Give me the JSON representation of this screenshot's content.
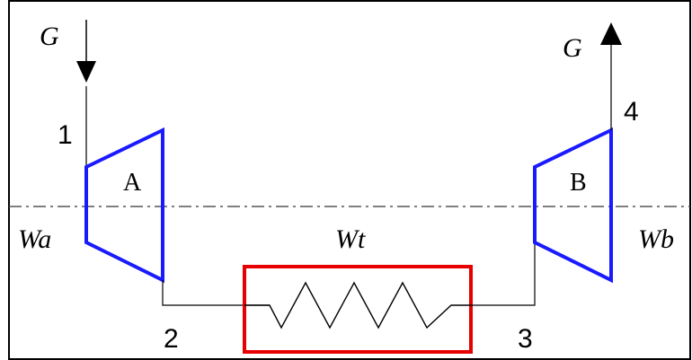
{
  "labels": {
    "flow_in": "G",
    "flow_out": "G",
    "point_1": "1",
    "point_2": "2",
    "point_3": "3",
    "point_4": "4",
    "component_a": "A",
    "component_b": "B",
    "work_a": "Wa",
    "work_t": "Wt",
    "work_b": "Wb"
  },
  "colors": {
    "component_outline": "#1a1aff",
    "heater_outline": "#e60000",
    "line": "#000000",
    "axis_dashdot": "#555555"
  },
  "icons": {
    "heater": "zigzag-resistor-icon",
    "inlet_arrow": "arrow-down-icon",
    "outlet_arrow": "arrow-up-icon"
  }
}
